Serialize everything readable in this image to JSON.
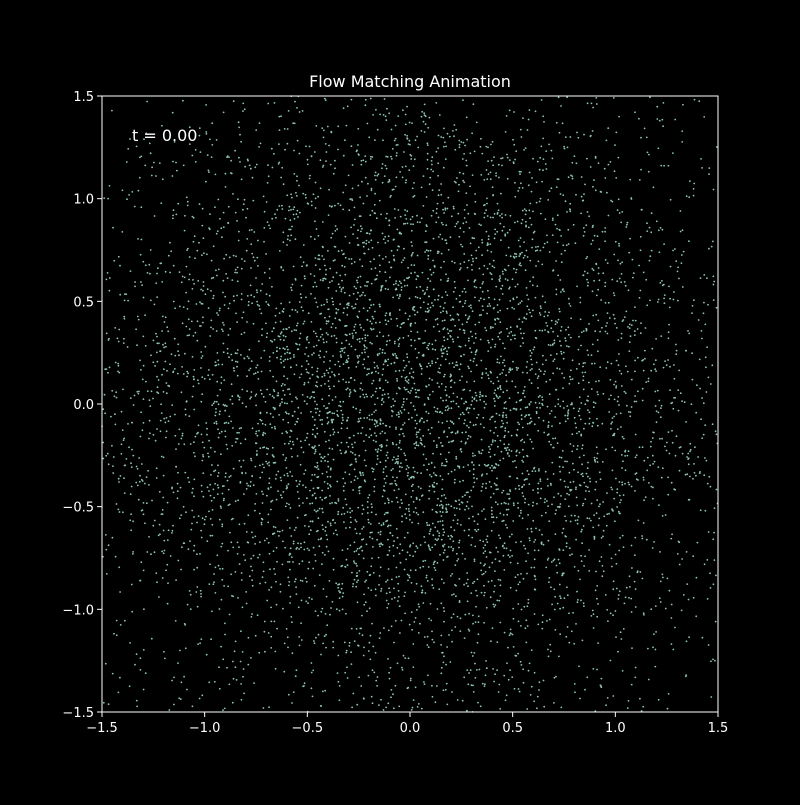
{
  "chart_data": {
    "type": "scatter",
    "title": "Flow Matching Animation",
    "annotation": "t = 0.00",
    "xlim": [
      -1.5,
      1.5
    ],
    "ylim": [
      -1.5,
      1.5
    ],
    "grid": false,
    "xticks": [
      -1.5,
      -1.0,
      -0.5,
      0.0,
      0.5,
      1.0,
      1.5
    ],
    "yticks": [
      -1.5,
      -1.0,
      -0.5,
      0.0,
      0.5,
      1.0,
      1.5
    ],
    "xtick_labels": [
      "−1.5",
      "−1.0",
      "−0.5",
      "0.0",
      "0.5",
      "1.0",
      "1.5"
    ],
    "ytick_labels": [
      "−1.5",
      "−1.0",
      "−0.5",
      "0.0",
      "0.5",
      "1.0",
      "1.5"
    ],
    "point_count": 6000,
    "distribution": "gaussian",
    "distribution_std": 0.85,
    "colors": {
      "background": "#000000",
      "axes": "#ffffff",
      "points": "#8ec5b2"
    }
  }
}
